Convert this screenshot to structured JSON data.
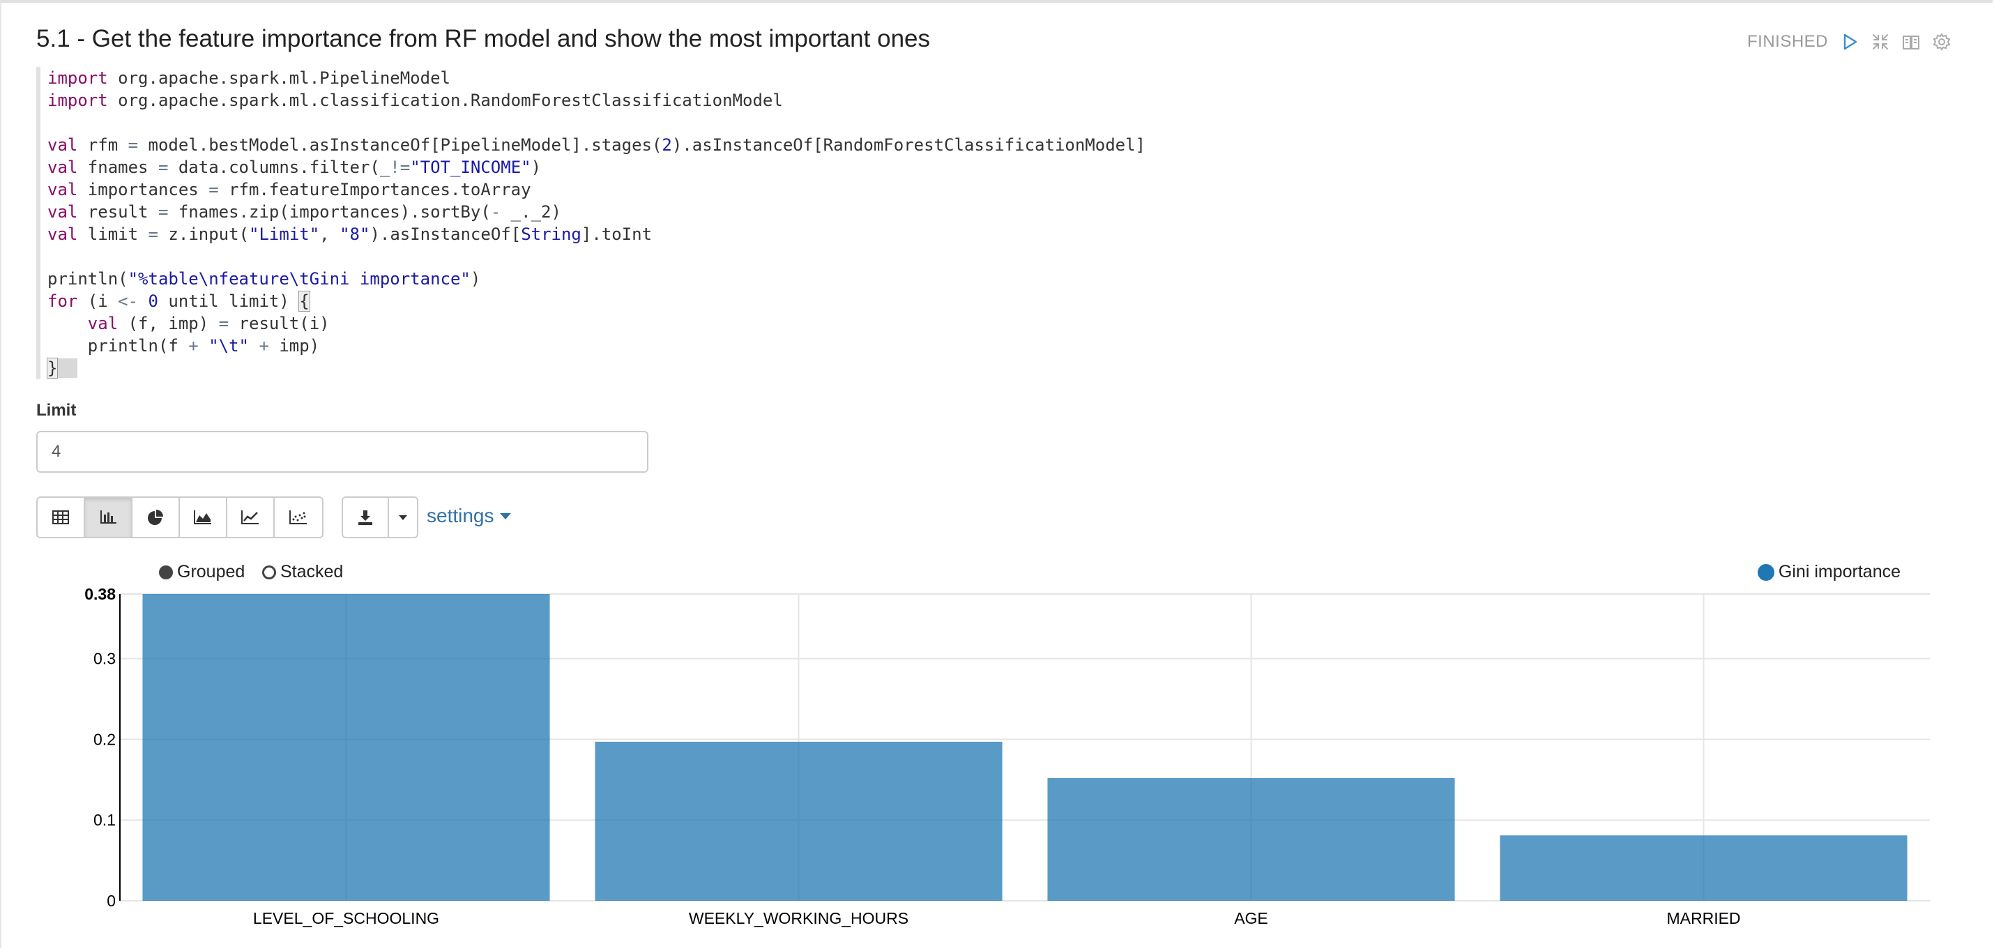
{
  "paragraph": {
    "title": "5.1 - Get the feature importance from RF model and show the most important ones",
    "status": "FINISHED"
  },
  "icons": {
    "run": "play-icon",
    "collapse": "collapse-arrows-icon",
    "output_toggle": "book-icon",
    "settings": "gear-icon",
    "viz": [
      "table-icon",
      "bar-chart-icon",
      "pie-chart-icon",
      "area-chart-icon",
      "line-chart-icon",
      "scatter-chart-icon"
    ],
    "download": "download-icon",
    "dropdown": "caret-down-icon"
  },
  "code": {
    "l1_kw": "import",
    "l1_rest": " org.apache.spark.ml.PipelineModel",
    "l2_kw": "import",
    "l2_rest": " org.apache.spark.ml.classification.RandomForestClassificationModel",
    "l4_kw": "val",
    "l4_a": " rfm ",
    "l4_op": "=",
    "l4_b": " model.bestModel.asInstanceOf[PipelineModel].stages(",
    "l4_num": "2",
    "l4_c": ").asInstanceOf[RandomForestClassificationModel]",
    "l5_kw": "val",
    "l5_a": " fnames ",
    "l5_op": "=",
    "l5_b": " data.columns.filter(_",
    "l5_op2": "!=",
    "l5_str": "\"TOT_INCOME\"",
    "l5_c": ")",
    "l6_kw": "val",
    "l6_a": " importances ",
    "l6_op": "=",
    "l6_b": " rfm.featureImportances.toArray",
    "l7_kw": "val",
    "l7_a": " result ",
    "l7_op": "=",
    "l7_b": " fnames.zip(importances).sortBy(",
    "l7_op2": "-",
    "l7_c": " _._2)",
    "l8_kw": "val",
    "l8_a": " limit ",
    "l8_op": "=",
    "l8_b": " z.input(",
    "l8_str1": "\"Limit\"",
    "l8_c": ", ",
    "l8_str2": "\"8\"",
    "l8_d": ").asInstanceOf[",
    "l8_typ": "String",
    "l8_e": "].toInt",
    "l10_a": "println(",
    "l10_str": "\"%table\\nfeature\\tGini importance\"",
    "l10_b": ")",
    "l11_kw": "for",
    "l11_a": " (i ",
    "l11_op": "<-",
    "l11_b": " ",
    "l11_num": "0",
    "l11_c": " until limit) ",
    "l11_brace": "{",
    "l12_indent": "    ",
    "l12_kw": "val",
    "l12_a": " (f, imp) ",
    "l12_op": "=",
    "l12_b": " result(i)",
    "l13_a": "    println(f ",
    "l13_op": "+",
    "l13_b": " ",
    "l13_str": "\"\\t\"",
    "l13_c": " ",
    "l13_op2": "+",
    "l13_d": " imp)",
    "l14_brace": "}"
  },
  "form": {
    "limit_label": "Limit",
    "limit_value": "4"
  },
  "toolbar": {
    "settings_label": "settings"
  },
  "chart_controls": {
    "grouped_label": "Grouped",
    "stacked_label": "Stacked",
    "mode": "Grouped"
  },
  "colors": {
    "bar": "#1f77b4",
    "legend_dot": "#1f77b4",
    "link": "#3071a9",
    "run_icon": "#3a8fd0"
  },
  "chart_data": {
    "type": "bar",
    "categories": [
      "LEVEL_OF_SCHOOLING",
      "WEEKLY_WORKING_HOURS",
      "AGE",
      "MARRIED"
    ],
    "series": [
      {
        "name": "Gini importance",
        "values": [
          0.38,
          0.197,
          0.152,
          0.081
        ]
      }
    ],
    "ylim": [
      0,
      0.38
    ],
    "yticks": [
      0,
      0.1,
      0.2,
      0.3,
      0.38
    ],
    "ytick_labels": [
      "0",
      "0.1",
      "0.2",
      "0.3",
      "0.38"
    ],
    "grid": true,
    "legend_position": "top-right"
  }
}
